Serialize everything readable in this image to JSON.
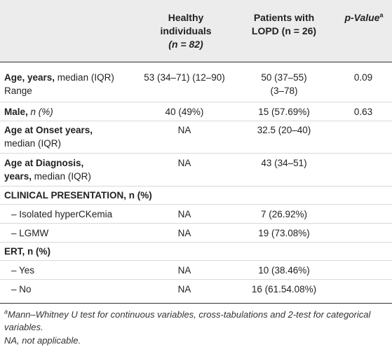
{
  "header": {
    "col_healthy_line1": "Healthy",
    "col_healthy_line2": "individuals",
    "col_healthy_n": "(n = 82)",
    "col_patients_line1": "Patients with",
    "col_patients_line2": "LOPD (n = 26)",
    "col_pvalue": "p-Value",
    "col_pvalue_sup": "a"
  },
  "rows": [
    {
      "label_bold": "Age, years,",
      "label_rest": " median (IQR)",
      "label_line2": "Range",
      "healthy": "53 (34–71) (12–90)",
      "patients_line1": "50 (37–55)",
      "patients_line2": "(3–78)",
      "pvalue": "0.09"
    },
    {
      "label_bold": "Male,",
      "label_rest": " n (%)",
      "healthy": "40 (49%)",
      "patients": "15 (57.69%)",
      "pvalue": "0.63"
    },
    {
      "label_bold": "Age at Onset years,",
      "label_line2": "median (IQR)",
      "healthy": "NA",
      "patients": "32.5 (20–40)"
    },
    {
      "label_bold": "Age at Diagnosis,",
      "label_bold2": "years,",
      "label_line2": " median (IQR)",
      "healthy": "NA",
      "patients": "43 (34–51)"
    },
    {
      "section": "CLINICAL PRESENTATION, n (%)"
    },
    {
      "label": "– Isolated hyperCKemia",
      "healthy": "NA",
      "patients": "7 (26.92%)"
    },
    {
      "label": "– LGMW",
      "healthy": "NA",
      "patients": "19 (73.08%)"
    },
    {
      "section": "ERT, n (%)"
    },
    {
      "label": "– Yes",
      "healthy": "NA",
      "patients": "10 (38.46%)"
    },
    {
      "label": "– No",
      "healthy": "NA",
      "patients": "16 (61.54.08%)"
    }
  ],
  "footnotes": {
    "a_marker": "a",
    "a_text": "Mann–Whitney U test for continuous variables, cross-tabulations and 2-test for categorical variables.",
    "na_text": "NA, not applicable."
  }
}
